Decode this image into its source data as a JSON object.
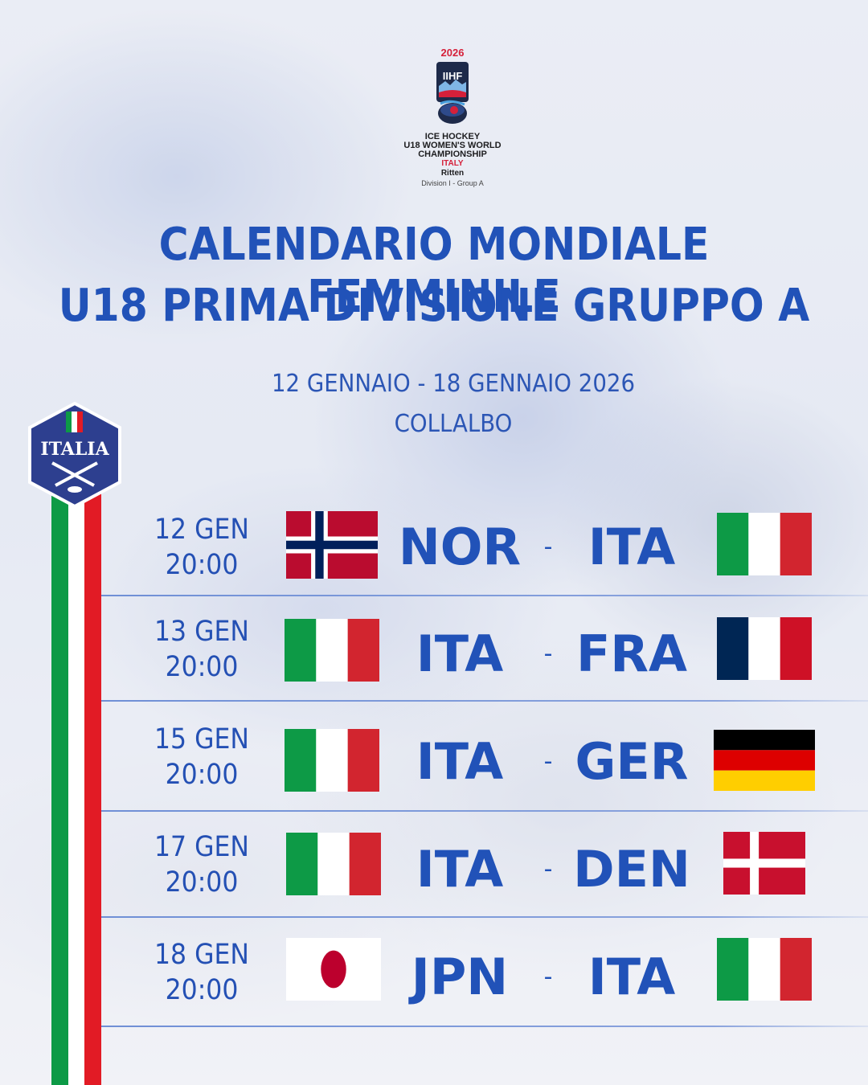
{
  "logo": {
    "year": "2026",
    "lines": [
      "ICE HOCKEY",
      "U18 WOMEN'S WORLD",
      "CHAMPIONSHIP"
    ],
    "country": "ITALY",
    "city": "Ritten",
    "division": "Division I - Group A",
    "mark_text": "IIHF"
  },
  "title": {
    "line1": "CALENDARIO MONDIALE FEMMINILE",
    "line2": "U18 PRIMA DIVISIONE GRUPPO A"
  },
  "event": {
    "dates": "12 GENNAIO - 18 GENNAIO 2026",
    "venue": "COLLALBO"
  },
  "badge": {
    "text": "ITALIA"
  },
  "colors": {
    "primary_blue": "#2152b8",
    "italy_green": "#0d9a46",
    "italy_red": "#e21b25"
  },
  "matches": [
    {
      "day": "12 GEN",
      "time": "20:00",
      "home": "NOR",
      "away": "ITA",
      "home_flag": "norway-flag",
      "away_flag": "italy-flag"
    },
    {
      "day": "13 GEN",
      "time": "20:00",
      "home": "ITA",
      "away": "FRA",
      "home_flag": "italy-flag",
      "away_flag": "france-flag"
    },
    {
      "day": "15 GEN",
      "time": "20:00",
      "home": "ITA",
      "away": "GER",
      "home_flag": "italy-flag",
      "away_flag": "germany-flag"
    },
    {
      "day": "17 GEN",
      "time": "20:00",
      "home": "ITA",
      "away": "DEN",
      "home_flag": "italy-flag",
      "away_flag": "denmark-flag"
    },
    {
      "day": "18 GEN",
      "time": "20:00",
      "home": "JPN",
      "away": "ITA",
      "home_flag": "japan-flag",
      "away_flag": "italy-flag"
    }
  ],
  "separator": "-"
}
